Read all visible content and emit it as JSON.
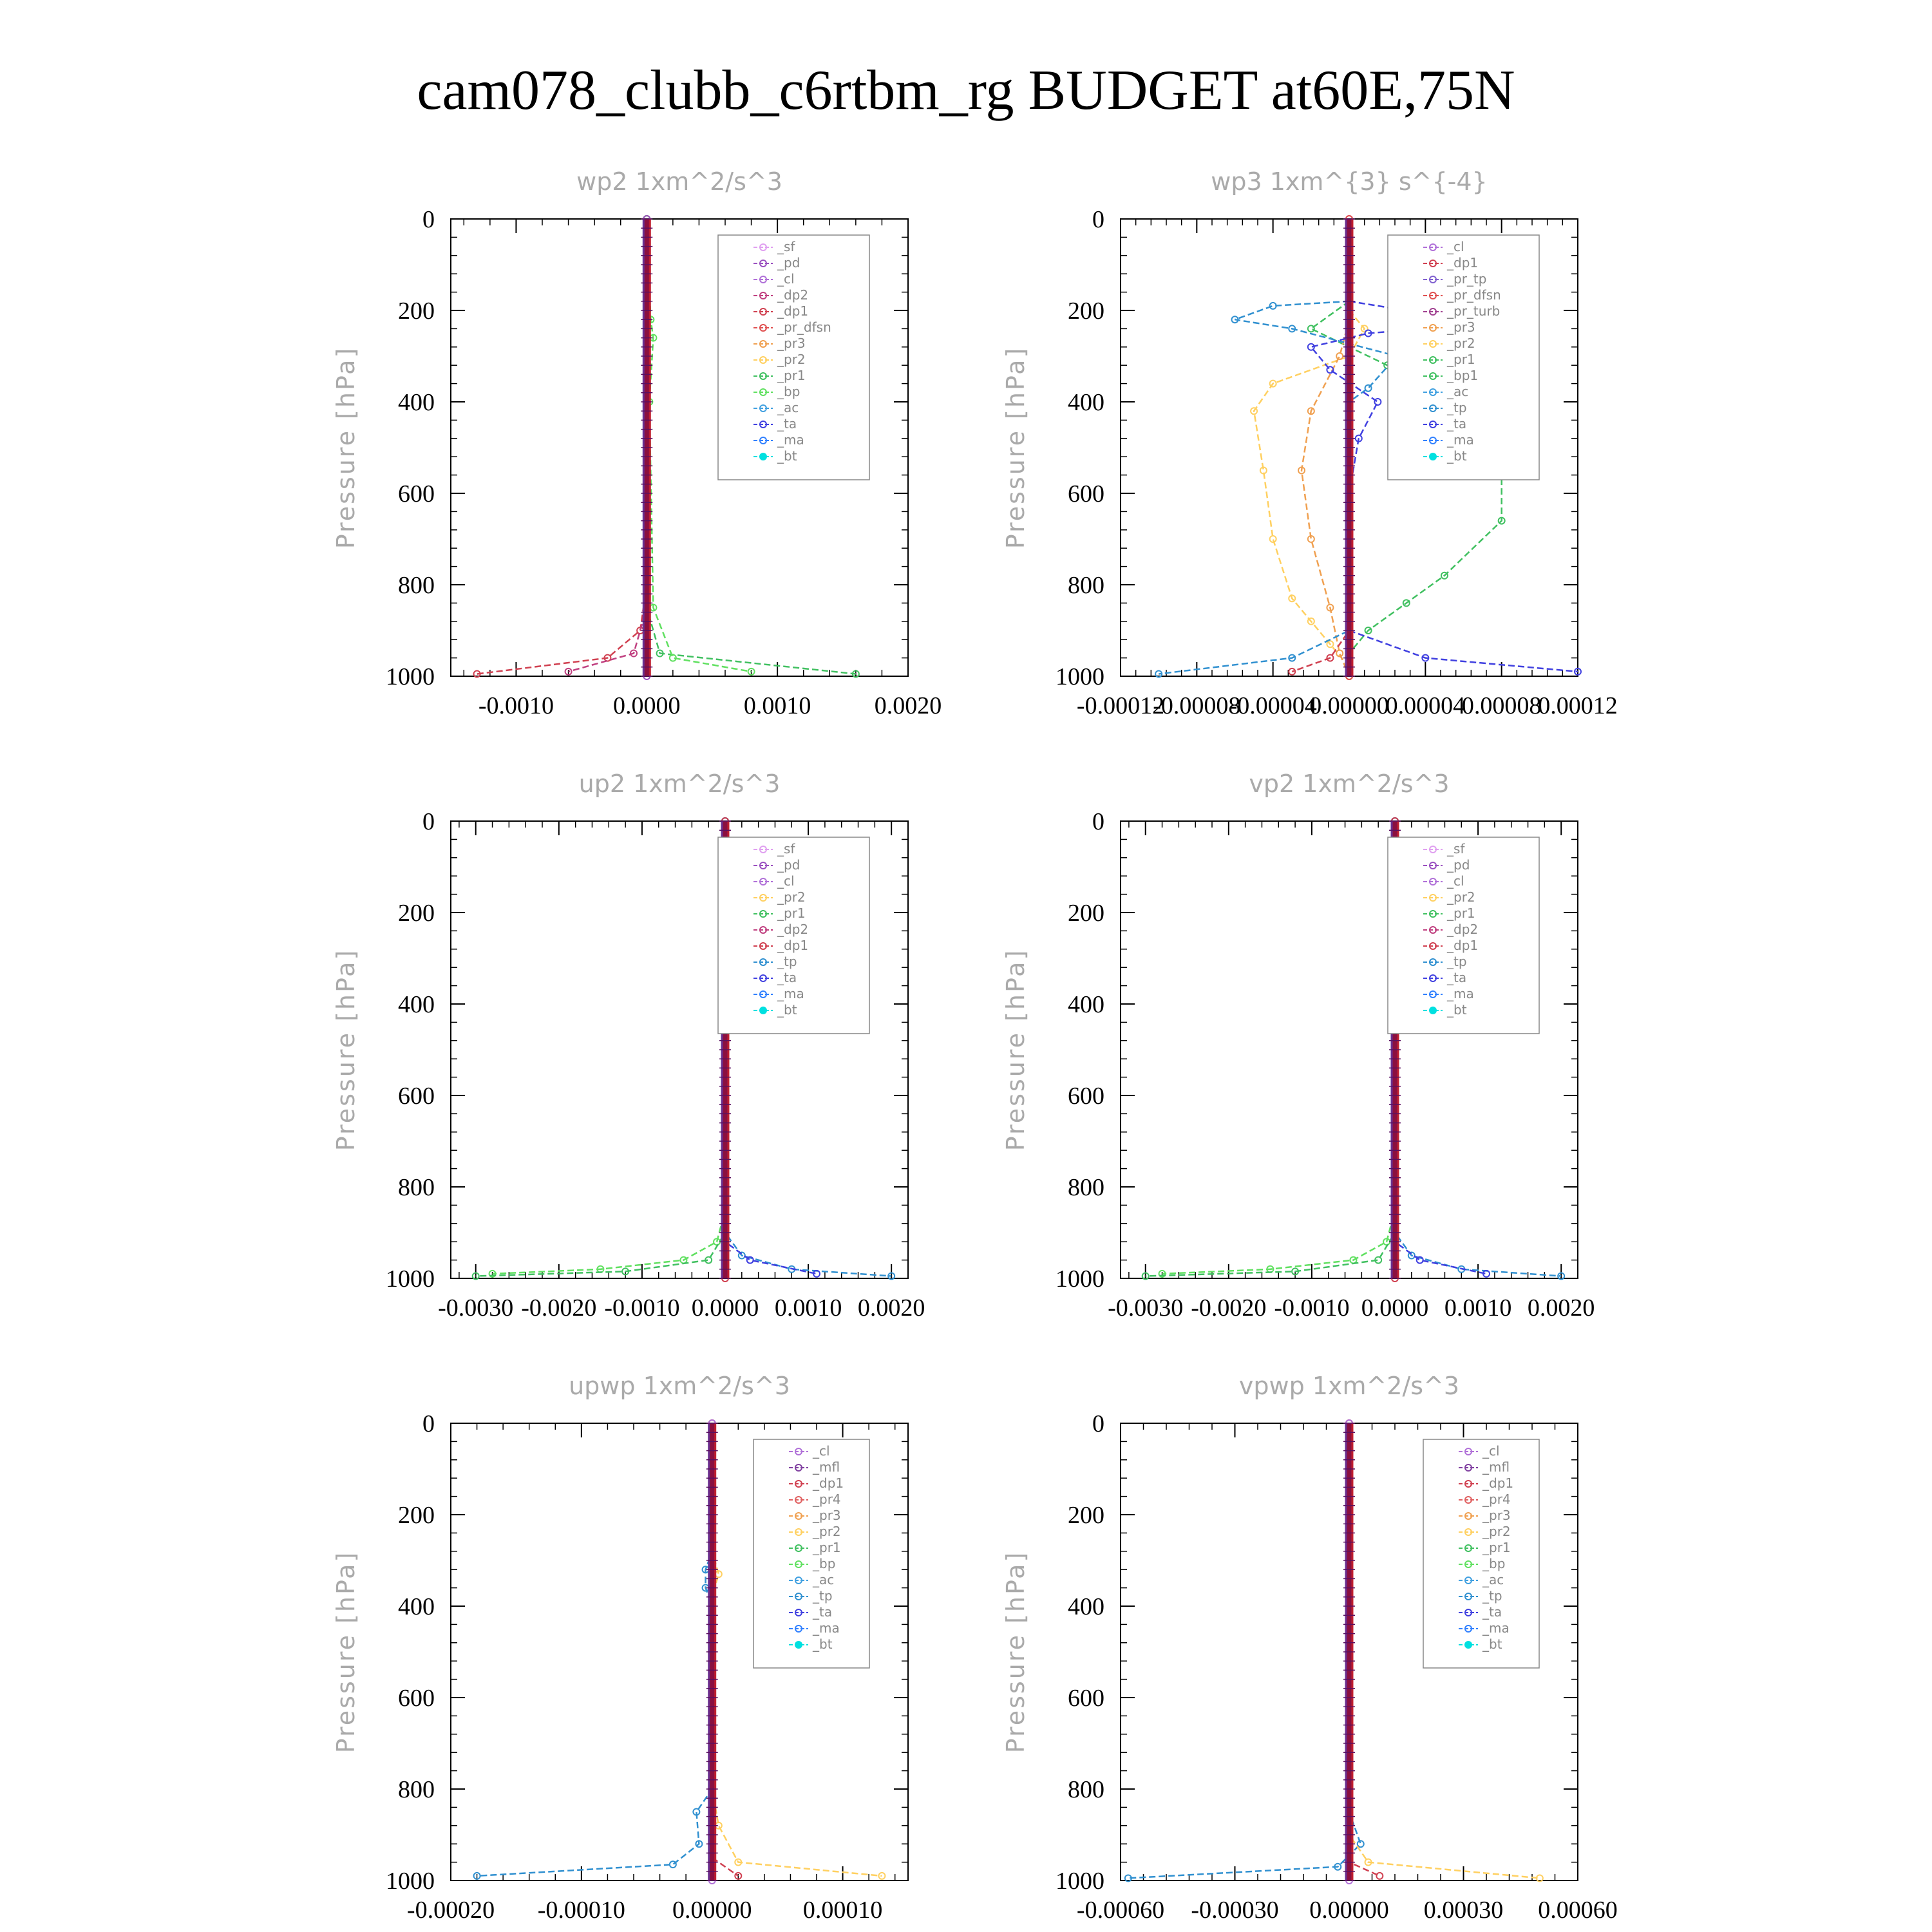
{
  "title": "cam078_clubb_c6rtbm_rg  BUDGET at60E,75N",
  "colors": {
    "sf": "#e0a0f0",
    "pd": "#9a50c0",
    "cl": "#b070d8",
    "dp2": "#c04080",
    "dp1": "#d04050",
    "pr_dfsn": "#e05050",
    "pr3": "#f0a050",
    "pr2": "#ffd060",
    "pr1": "#40c060",
    "bp": "#60e060",
    "ac": "#40a0e0",
    "ta": "#4040e0",
    "ma": "#3080ff",
    "bt": "#00e0e0",
    "tp": "#3090d0",
    "mfl": "#8040a0",
    "pr4": "#e06060",
    "pr_tp": "#8060d0",
    "pr_turb": "#a04090",
    "bp1": "#40c060"
  },
  "chart_data": [
    {
      "type": "line",
      "title": "wp2   1xm^2/s^3",
      "ylabel": "Pressure [hPa]",
      "ylim": [
        1000,
        0
      ],
      "xlim": [
        -0.0015,
        0.002
      ],
      "xticks": [
        -0.001,
        0.0,
        0.001,
        0.002
      ],
      "xtick_labels": [
        "-0.0010",
        "0.0000",
        "0.0010",
        "0.0020"
      ],
      "yticks": [
        0,
        200,
        400,
        600,
        800,
        1000
      ],
      "legend": [
        "_sf",
        "_pd",
        "_cl",
        "_dp2",
        "_dp1",
        "_pr_dfsn",
        "_pr3",
        "_pr2",
        "_pr1",
        "_bp",
        "_ac",
        "_ta",
        "_ma",
        "_bt"
      ],
      "legend_keys": [
        "sf",
        "pd",
        "cl",
        "dp2",
        "dp1",
        "pr_dfsn",
        "pr3",
        "pr2",
        "pr1",
        "bp",
        "ac",
        "ta",
        "ma",
        "bt"
      ],
      "series": [
        {
          "key": "dp1",
          "points": [
            [
              0,
              0
            ],
            [
              0,
              800
            ],
            [
              -5e-05,
              900
            ],
            [
              -0.0003,
              960
            ],
            [
              -0.0013,
              995
            ]
          ]
        },
        {
          "key": "dp2",
          "points": [
            [
              0,
              0
            ],
            [
              0,
              850
            ],
            [
              -0.0001,
              950
            ],
            [
              -0.0006,
              990
            ]
          ]
        },
        {
          "key": "pr1",
          "points": [
            [
              0,
              0
            ],
            [
              0,
              850
            ],
            [
              0.0001,
              950
            ],
            [
              0.0016,
              995
            ]
          ]
        },
        {
          "key": "bp",
          "points": [
            [
              0,
              0
            ],
            [
              3e-05,
              220
            ],
            [
              5e-05,
              260
            ],
            [
              2e-05,
              400
            ],
            [
              5e-05,
              850
            ],
            [
              0.0002,
              960
            ],
            [
              0.0008,
              990
            ]
          ]
        },
        {
          "key": "pd",
          "points": [
            [
              0,
              0
            ],
            [
              0,
              1000
            ]
          ]
        }
      ]
    },
    {
      "type": "line",
      "title": "wp3   1xm^{3} s^{-4}",
      "ylabel": "Pressure [hPa]",
      "ylim": [
        1000,
        0
      ],
      "xlim": [
        -0.00012,
        0.00012
      ],
      "xticks": [
        -0.00012,
        -8e-05,
        -4e-05,
        0.0,
        4e-05,
        8e-05,
        0.00012
      ],
      "xtick_labels": [
        "-0.00012",
        "-0.00008",
        "-0.00004",
        "0.00000",
        "0.00004",
        "0.00008",
        "0.00012"
      ],
      "yticks": [
        0,
        200,
        400,
        600,
        800,
        1000
      ],
      "legend": [
        "_cl",
        "_dp1",
        "_pr_tp",
        "_pr_dfsn",
        "_pr_turb",
        "_pr3",
        "_pr2",
        "_pr1",
        "_bp1",
        "_ac",
        "_tp",
        "_ta",
        "_ma",
        "_bt"
      ],
      "legend_keys": [
        "cl",
        "dp1",
        "pr_tp",
        "pr_dfsn",
        "pr_turb",
        "pr3",
        "pr2",
        "pr1",
        "bp1",
        "ac",
        "tp",
        "ta",
        "ma",
        "bt"
      ],
      "series": [
        {
          "key": "bp1",
          "points": [
            [
              0,
              180
            ],
            [
              -2e-05,
              240
            ],
            [
              2e-05,
              320
            ],
            [
              4e-05,
              380
            ],
            [
              7e-05,
              460
            ],
            [
              8e-05,
              560
            ],
            [
              8e-05,
              660
            ],
            [
              5e-05,
              780
            ],
            [
              3e-05,
              840
            ],
            [
              1e-05,
              900
            ],
            [
              0,
              950
            ],
            [
              0,
              1000
            ]
          ]
        },
        {
          "key": "pr2",
          "points": [
            [
              0,
              200
            ],
            [
              8e-06,
              240
            ],
            [
              0,
              300
            ],
            [
              -4e-05,
              360
            ],
            [
              -5e-05,
              420
            ],
            [
              -4.5e-05,
              550
            ],
            [
              -4e-05,
              700
            ],
            [
              -3e-05,
              830
            ],
            [
              -2e-05,
              880
            ],
            [
              -1e-05,
              930
            ],
            [
              0,
              980
            ]
          ]
        },
        {
          "key": "pr3",
          "points": [
            [
              0,
              220
            ],
            [
              -5e-06,
              300
            ],
            [
              -2e-05,
              420
            ],
            [
              -2.5e-05,
              550
            ],
            [
              -2e-05,
              700
            ],
            [
              -1e-05,
              850
            ],
            [
              -5e-06,
              950
            ],
            [
              0,
              1000
            ]
          ]
        },
        {
          "key": "tp",
          "points": [
            [
              0,
              180
            ],
            [
              -4e-05,
              190
            ],
            [
              -6e-05,
              220
            ],
            [
              -3e-05,
              240
            ],
            [
              2.5e-05,
              300
            ],
            [
              1e-05,
              370
            ],
            [
              0,
              400
            ],
            [
              0,
              900
            ],
            [
              -3e-05,
              960
            ],
            [
              -0.0001,
              995
            ]
          ]
        },
        {
          "key": "ta",
          "points": [
            [
              0,
              180
            ],
            [
              3e-05,
              200
            ],
            [
              4e-05,
              240
            ],
            [
              1e-05,
              250
            ],
            [
              -2e-05,
              280
            ],
            [
              -1e-05,
              330
            ],
            [
              1.5e-05,
              400
            ],
            [
              5e-06,
              480
            ],
            [
              0,
              600
            ],
            [
              0,
              900
            ],
            [
              4e-05,
              960
            ],
            [
              0.00012,
              990
            ]
          ]
        },
        {
          "key": "dp1",
          "points": [
            [
              0,
              0
            ],
            [
              0,
              900
            ],
            [
              -1e-05,
              960
            ],
            [
              -3e-05,
              990
            ]
          ]
        },
        {
          "key": "pr_dfsn",
          "points": [
            [
              0,
              0
            ],
            [
              0,
              1000
            ]
          ]
        }
      ]
    },
    {
      "type": "line",
      "title": "up2   1xm^2/s^3",
      "ylabel": "Pressure [hPa]",
      "ylim": [
        1000,
        0
      ],
      "xlim": [
        -0.0033,
        0.0022
      ],
      "xticks": [
        -0.003,
        -0.002,
        -0.001,
        0.0,
        0.001,
        0.002
      ],
      "xtick_labels": [
        "-0.0030",
        "-0.0020",
        "-0.0010",
        "0.0000",
        "0.0010",
        "0.0020"
      ],
      "yticks": [
        0,
        200,
        400,
        600,
        800,
        1000
      ],
      "legend": [
        "_sf",
        "_pd",
        "_cl",
        "_pr2",
        "_pr1",
        "_dp2",
        "_dp1",
        "_tp",
        "_ta",
        "_ma",
        "_bt"
      ],
      "legend_keys": [
        "sf",
        "pd",
        "cl",
        "pr2",
        "pr1",
        "dp2",
        "dp1",
        "tp",
        "ta",
        "ma",
        "bt"
      ],
      "series": [
        {
          "key": "bp",
          "points": [
            [
              0,
              0
            ],
            [
              0,
              850
            ],
            [
              -0.0001,
              920
            ],
            [
              -0.0005,
              960
            ],
            [
              -0.0015,
              980
            ],
            [
              -0.0028,
              990
            ]
          ]
        },
        {
          "key": "pr1",
          "points": [
            [
              0,
              0
            ],
            [
              0,
              900
            ],
            [
              -0.0002,
              960
            ],
            [
              -0.0012,
              985
            ],
            [
              -0.003,
              995
            ]
          ]
        },
        {
          "key": "tp",
          "points": [
            [
              0,
              0
            ],
            [
              0,
              900
            ],
            [
              0.0002,
              950
            ],
            [
              0.0008,
              980
            ],
            [
              0.002,
              995
            ]
          ]
        },
        {
          "key": "ta",
          "points": [
            [
              0,
              0
            ],
            [
              0,
              920
            ],
            [
              0.0003,
              960
            ],
            [
              0.0011,
              990
            ]
          ]
        },
        {
          "key": "dp1",
          "points": [
            [
              0,
              0
            ],
            [
              0,
              1000
            ]
          ]
        }
      ]
    },
    {
      "type": "line",
      "title": "vp2   1xm^2/s^3",
      "ylabel": "Pressure [hPa]",
      "ylim": [
        1000,
        0
      ],
      "xlim": [
        -0.0033,
        0.0022
      ],
      "xticks": [
        -0.003,
        -0.002,
        -0.001,
        0.0,
        0.001,
        0.002
      ],
      "xtick_labels": [
        "-0.0030",
        "-0.0020",
        "-0.0010",
        "0.0000",
        "0.0010",
        "0.0020"
      ],
      "yticks": [
        0,
        200,
        400,
        600,
        800,
        1000
      ],
      "legend": [
        "_sf",
        "_pd",
        "_cl",
        "_pr2",
        "_pr1",
        "_dp2",
        "_dp1",
        "_tp",
        "_ta",
        "_ma",
        "_bt"
      ],
      "legend_keys": [
        "sf",
        "pd",
        "cl",
        "pr2",
        "pr1",
        "dp2",
        "dp1",
        "tp",
        "ta",
        "ma",
        "bt"
      ],
      "series": [
        {
          "key": "bp",
          "points": [
            [
              0,
              0
            ],
            [
              0,
              850
            ],
            [
              -0.0001,
              920
            ],
            [
              -0.0005,
              960
            ],
            [
              -0.0015,
              980
            ],
            [
              -0.0028,
              990
            ]
          ]
        },
        {
          "key": "pr1",
          "points": [
            [
              0,
              0
            ],
            [
              0,
              900
            ],
            [
              -0.0002,
              960
            ],
            [
              -0.0012,
              985
            ],
            [
              -0.003,
              995
            ]
          ]
        },
        {
          "key": "tp",
          "points": [
            [
              0,
              0
            ],
            [
              0,
              900
            ],
            [
              0.0002,
              950
            ],
            [
              0.0008,
              980
            ],
            [
              0.002,
              995
            ]
          ]
        },
        {
          "key": "ta",
          "points": [
            [
              0,
              0
            ],
            [
              0,
              920
            ],
            [
              0.0003,
              960
            ],
            [
              0.0011,
              990
            ]
          ]
        },
        {
          "key": "dp1",
          "points": [
            [
              0,
              0
            ],
            [
              0,
              1000
            ]
          ]
        }
      ]
    },
    {
      "type": "line",
      "title": "upwp   1xm^2/s^3",
      "ylabel": "Pressure [hPa]",
      "ylim": [
        1000,
        0
      ],
      "xlim": [
        -0.0002,
        0.00015
      ],
      "xticks": [
        -0.0002,
        -0.0001,
        0.0,
        0.0001
      ],
      "xtick_labels": [
        "-0.00020",
        "-0.00010",
        "0.00000",
        "0.00010"
      ],
      "yticks": [
        0,
        200,
        400,
        600,
        800,
        1000
      ],
      "legend": [
        "_cl",
        "_mfl",
        "_dp1",
        "_pr4",
        "_pr3",
        "_pr2",
        "_pr1",
        "_bp",
        "_ac",
        "_tp",
        "_ta",
        "_ma",
        "_bt"
      ],
      "legend_keys": [
        "cl",
        "mfl",
        "dp1",
        "pr4",
        "pr3",
        "pr2",
        "pr1",
        "bp",
        "ac",
        "tp",
        "ta",
        "ma",
        "bt"
      ],
      "series": [
        {
          "key": "tp",
          "points": [
            [
              0,
              0
            ],
            [
              0,
              280
            ],
            [
              -5e-06,
              320
            ],
            [
              -5e-06,
              360
            ],
            [
              0,
              400
            ],
            [
              0,
              800
            ],
            [
              -1.2e-05,
              850
            ],
            [
              -1e-05,
              920
            ],
            [
              -3e-05,
              965
            ],
            [
              -0.00018,
              990
            ]
          ]
        },
        {
          "key": "pr2",
          "points": [
            [
              0,
              0
            ],
            [
              0,
              280
            ],
            [
              5e-06,
              330
            ],
            [
              0,
              380
            ],
            [
              0,
              800
            ],
            [
              5e-06,
              880
            ],
            [
              2e-05,
              960
            ],
            [
              0.00013,
              990
            ]
          ]
        },
        {
          "key": "dp1",
          "points": [
            [
              0,
              0
            ],
            [
              0,
              950
            ],
            [
              2e-05,
              990
            ]
          ]
        },
        {
          "key": "cl",
          "points": [
            [
              0,
              0
            ],
            [
              0,
              1000
            ]
          ]
        }
      ]
    },
    {
      "type": "line",
      "title": "vpwp   1xm^2/s^3",
      "ylabel": "Pressure [hPa]",
      "ylim": [
        1000,
        0
      ],
      "xlim": [
        -0.0006,
        0.0006
      ],
      "xticks": [
        -0.0006,
        -0.0003,
        0.0,
        0.0003,
        0.0006
      ],
      "xtick_labels": [
        "-0.00060",
        "-0.00030",
        "0.00000",
        "0.00030",
        "0.00060"
      ],
      "yticks": [
        0,
        200,
        400,
        600,
        800,
        1000
      ],
      "legend": [
        "_cl",
        "_mfl",
        "_dp1",
        "_pr4",
        "_pr3",
        "_pr2",
        "_pr1",
        "_bp",
        "_ac",
        "_tp",
        "_ta",
        "_ma",
        "_bt"
      ],
      "legend_keys": [
        "cl",
        "mfl",
        "dp1",
        "pr4",
        "pr3",
        "pr2",
        "pr1",
        "bp",
        "ac",
        "tp",
        "ta",
        "ma",
        "bt"
      ],
      "series": [
        {
          "key": "tp",
          "points": [
            [
              0,
              0
            ],
            [
              0,
              850
            ],
            [
              3e-05,
              920
            ],
            [
              -3e-05,
              970
            ],
            [
              -0.00058,
              995
            ]
          ]
        },
        {
          "key": "pr2",
          "points": [
            [
              0,
              0
            ],
            [
              0,
              900
            ],
            [
              5e-05,
              960
            ],
            [
              0.0005,
              995
            ]
          ]
        },
        {
          "key": "dp1",
          "points": [
            [
              0,
              0
            ],
            [
              0,
              960
            ],
            [
              8e-05,
              990
            ]
          ]
        },
        {
          "key": "cl",
          "points": [
            [
              0,
              0
            ],
            [
              0,
              1000
            ]
          ]
        }
      ]
    }
  ]
}
